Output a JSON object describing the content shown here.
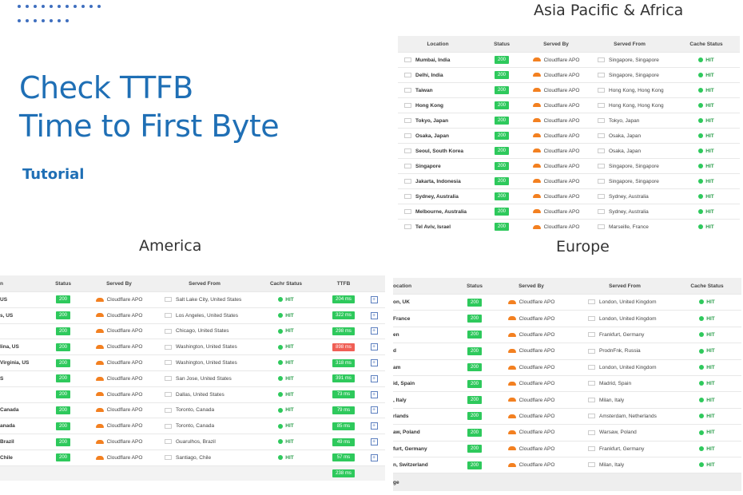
{
  "hero": {
    "title_line1": "Check TTFB",
    "title_line2": "Time to First Byte",
    "subtitle": "Tutorial"
  },
  "sections": {
    "asia": "Asia Pacific & Africa",
    "america": "America",
    "europe": "Europe"
  },
  "headers": {
    "location": "Location",
    "status": "Status",
    "served_by": "Served By",
    "served_from": "Served From",
    "cache_status": "Cache Status",
    "ttfb": "TTFB"
  },
  "status_value": "200",
  "served_by_value": "Cloudflare APO",
  "cache_value": "HIT",
  "asia_rows": [
    {
      "location": "Mumbai, India",
      "served_from": "Singapore, Singapore"
    },
    {
      "location": "Delhi, India",
      "served_from": "Singapore, Singapore"
    },
    {
      "location": "Taiwan",
      "served_from": "Hong Kong, Hong Kong"
    },
    {
      "location": "Hong Kong",
      "served_from": "Hong Kong, Hong Kong"
    },
    {
      "location": "Tokyo, Japan",
      "served_from": "Tokyo, Japan"
    },
    {
      "location": "Osaka, Japan",
      "served_from": "Osaka, Japan"
    },
    {
      "location": "Seoul, South Korea",
      "served_from": "Osaka, Japan"
    },
    {
      "location": "Singapore",
      "served_from": "Singapore, Singapore"
    },
    {
      "location": "Jakarta, Indonesia",
      "served_from": "Singapore, Singapore"
    },
    {
      "location": "Sydney, Australia",
      "served_from": "Sydney, Australia"
    },
    {
      "location": "Melbourne, Australia",
      "served_from": "Sydney, Australia"
    },
    {
      "location": "Tel Aviv, Israel",
      "served_from": "Marseille, France"
    }
  ],
  "america_rows": [
    {
      "location": "US",
      "served_from": "Salt Lake City, United States",
      "ttfb": "204 ms"
    },
    {
      "location": "s, US",
      "served_from": "Los Angeles, United States",
      "ttfb": "322 ms"
    },
    {
      "location": "",
      "served_from": "Chicago, United States",
      "ttfb": "298 ms"
    },
    {
      "location": "lina, US",
      "served_from": "Washington, United States",
      "ttfb": "898 ms"
    },
    {
      "location": "Virginia, US",
      "served_from": "Washington, United States",
      "ttfb": "318 ms"
    },
    {
      "location": "S",
      "served_from": "San Jose, United States",
      "ttfb": "391 ms"
    },
    {
      "location": "",
      "served_from": "Dallas, United States",
      "ttfb": "73 ms"
    },
    {
      "location": "Canada",
      "served_from": "Toronto, Canada",
      "ttfb": "79 ms"
    },
    {
      "location": "anada",
      "served_from": "Toronto, Canada",
      "ttfb": "85 ms"
    },
    {
      "location": "Brazil",
      "served_from": "Guarulhos, Brazil",
      "ttfb": "49 ms"
    },
    {
      "location": "Chile",
      "served_from": "Santiago, Chile",
      "ttfb": "57 ms"
    }
  ],
  "america_footer_ttfb": "238 ms",
  "europe_rows": [
    {
      "location": "on, UK",
      "served_from": "London, United Kingdom"
    },
    {
      "location": "France",
      "served_from": "London, United Kingdom"
    },
    {
      "location": "en",
      "served_from": "Frankfurt, Germany"
    },
    {
      "location": "d",
      "served_from": "ProdnFnk, Russia"
    },
    {
      "location": "am",
      "served_from": "London, United Kingdom"
    },
    {
      "location": "id, Spain",
      "served_from": "Madrid, Spain"
    },
    {
      "location": ", Italy",
      "served_from": "Milan, Italy"
    },
    {
      "location": "rlands",
      "served_from": "Amsterdam, Netherlands"
    },
    {
      "location": "aw, Poland",
      "served_from": "Warsaw, Poland"
    },
    {
      "location": "furt, Germany",
      "served_from": "Frankfurt, Germany"
    },
    {
      "location": "n, Switzerland",
      "served_from": "Milan, Italy"
    }
  ],
  "europe_footer": "ge",
  "colors": {
    "accent": "#1f6fb5",
    "status_green": "#2ec95c",
    "slow_red": "#f05f55",
    "cloudflare_orange": "#f38020"
  }
}
